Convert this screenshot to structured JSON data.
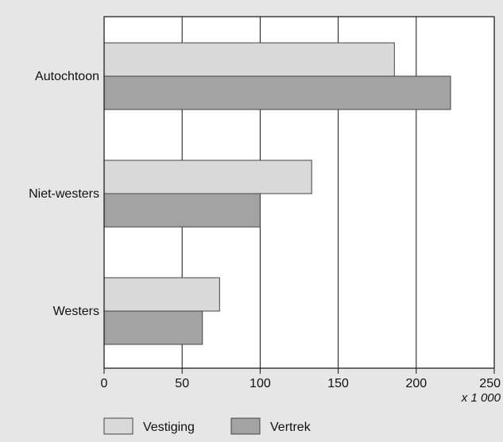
{
  "chart_data": {
    "type": "bar",
    "orientation": "horizontal",
    "categories": [
      "Autochtoon",
      "Niet-westers",
      "Westers"
    ],
    "series": [
      {
        "name": "Vestiging",
        "values": [
          186,
          133,
          74
        ],
        "color": "#d9d9d9"
      },
      {
        "name": "Vertrek",
        "values": [
          222,
          100,
          63
        ],
        "color": "#a3a3a3"
      }
    ],
    "xlim": [
      0,
      250
    ],
    "x_ticks": [
      "0",
      "50",
      "100",
      "150",
      "200",
      "250"
    ],
    "x_unit": "x 1 000",
    "grid": true,
    "legend": "bottom-left"
  },
  "colors": {
    "background": "#e6e6e6",
    "plot_background": "#ffffff",
    "bar_stroke": "#444444",
    "axis": "#111111"
  }
}
